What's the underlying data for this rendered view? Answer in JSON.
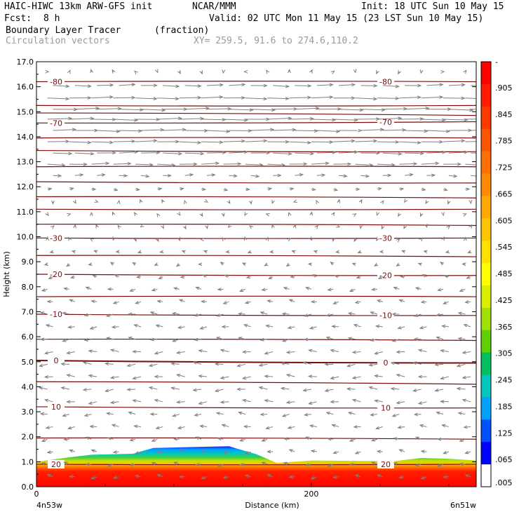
{
  "header": {
    "model": "HAIC-HIWC 13km ARW-GFS init",
    "org": "NCAR/MMM",
    "init": "Init: 18 UTC Sun 10 May 15",
    "fcst_label": "Fcst:",
    "fcst_value": "8 h",
    "valid": "Valid: 02 UTC Mon 11 May 15 (23 LST Sun 10 May 15)",
    "field": "Boundary Layer Tracer",
    "field_units": "(fraction)",
    "overlay": "Circulation vectors",
    "xy": "XY= 259.5, 91.6 to 274.6,110.2"
  },
  "colors": {
    "contour": "#7a0c0c",
    "vector": "#7f7f7f",
    "frame": "#000000"
  },
  "chart_data": {
    "type": "heatmap",
    "title": "Boundary Layer Tracer",
    "ylabel": "Height (km)",
    "xlabel": "Distance (km)",
    "ylim": [
      0,
      17
    ],
    "xlim": [
      0,
      320
    ],
    "y_ticks": [
      "0.0",
      "1.0",
      "2.0",
      "3.0",
      "4.0",
      "5.0",
      "6.0",
      "7.0",
      "8.0",
      "9.0",
      "10.0",
      "11.0",
      "12.0",
      "13.0",
      "14.0",
      "15.0",
      "16.0",
      "17.0"
    ],
    "x_ticks": [
      {
        "label": "0",
        "value": 0
      },
      {
        "label": "200",
        "value": 200
      }
    ],
    "x_endpoints": {
      "left": "4n53w",
      "right": "6n51w"
    },
    "colorbar": {
      "labels": [
        "-",
        ".905",
        ".845",
        ".785",
        ".725",
        ".665",
        ".605",
        ".545",
        ".485",
        ".425",
        ".365",
        ".305",
        ".245",
        ".185",
        ".125",
        ".065",
        ".005"
      ],
      "colors": [
        "#ff0000",
        "#ff1c00",
        "#ff3800",
        "#ff5400",
        "#ff7000",
        "#ff8c00",
        "#ffa800",
        "#ffc400",
        "#ffe000",
        "#ffff00",
        "#d8f000",
        "#a0e000",
        "#60d000",
        "#00c060",
        "#00c8c0",
        "#00a0ff",
        "#0050ff",
        "#0000ff",
        "#ffffff"
      ]
    },
    "tracer_top_profile": [
      {
        "x": 0,
        "h": 1.0
      },
      {
        "x": 20,
        "h": 1.15
      },
      {
        "x": 40,
        "h": 1.28
      },
      {
        "x": 70,
        "h": 1.32
      },
      {
        "x": 85,
        "h": 1.55
      },
      {
        "x": 140,
        "h": 1.62
      },
      {
        "x": 160,
        "h": 1.3
      },
      {
        "x": 175,
        "h": 0.95
      },
      {
        "x": 200,
        "h": 1.05
      },
      {
        "x": 260,
        "h": 1.02
      },
      {
        "x": 280,
        "h": 1.15
      },
      {
        "x": 300,
        "h": 1.12
      },
      {
        "x": 320,
        "h": 1.05
      }
    ],
    "temperature_contours": [
      {
        "label": "-80",
        "heights": [
          16.2,
          16.2
        ]
      },
      {
        "label": "",
        "heights": [
          15.25,
          15.25
        ]
      },
      {
        "label": "",
        "heights": [
          14.95,
          14.85
        ]
      },
      {
        "label": "-70",
        "heights": [
          14.55,
          14.6
        ]
      },
      {
        "label": "",
        "heights": [
          13.95,
          13.95
        ]
      },
      {
        "label": "",
        "heights": [
          13.45,
          13.4
        ]
      },
      {
        "label": "",
        "heights": [
          12.8,
          12.8
        ]
      },
      {
        "label": "",
        "heights": [
          12.2,
          12.15
        ]
      },
      {
        "label": "",
        "heights": [
          11.6,
          11.55
        ]
      },
      {
        "label": "",
        "heights": [
          11.1,
          11.1
        ]
      },
      {
        "label": "",
        "heights": [
          10.5,
          10.45
        ]
      },
      {
        "label": "-30",
        "heights": [
          9.95,
          9.95
        ]
      },
      {
        "label": "",
        "heights": [
          9.25,
          9.2
        ]
      },
      {
        "label": "-20",
        "heights": [
          8.5,
          8.45
        ]
      },
      {
        "label": "",
        "heights": [
          7.6,
          7.6
        ]
      },
      {
        "label": "-10",
        "heights": [
          6.9,
          6.85
        ]
      },
      {
        "label": "",
        "heights": [
          5.9,
          5.85
        ]
      },
      {
        "label": "0",
        "heights": [
          5.05,
          4.95
        ]
      },
      {
        "label": "",
        "heights": [
          4.2,
          4.1
        ]
      },
      {
        "label": "10",
        "heights": [
          3.2,
          3.15
        ]
      },
      {
        "label": "",
        "heights": [
          1.95,
          1.9
        ]
      },
      {
        "label": "20",
        "heights": [
          0.9,
          0.9
        ]
      }
    ],
    "vector_rows": [
      {
        "y": 16.6,
        "u": 0
      },
      {
        "y": 16.05,
        "u": 12
      },
      {
        "y": 15.55,
        "u": 16
      },
      {
        "y": 15.1,
        "u": 18
      },
      {
        "y": 14.7,
        "u": 18
      },
      {
        "y": 14.25,
        "u": 17
      },
      {
        "y": 13.8,
        "u": 16
      },
      {
        "y": 13.35,
        "u": 14
      },
      {
        "y": 12.9,
        "u": 13
      },
      {
        "y": 12.45,
        "u": 6
      },
      {
        "y": 11.9,
        "u": 3
      },
      {
        "y": 11.4,
        "u": 0
      },
      {
        "y": 10.9,
        "u": 0
      },
      {
        "y": 10.4,
        "u": 0
      },
      {
        "y": 9.9,
        "u": 0
      },
      {
        "y": 9.4,
        "u": -2
      },
      {
        "y": 8.9,
        "u": -2
      },
      {
        "y": 8.4,
        "u": -3
      },
      {
        "y": 7.9,
        "u": -4
      },
      {
        "y": 7.4,
        "u": -4
      },
      {
        "y": 6.9,
        "u": -5
      },
      {
        "y": 6.4,
        "u": -5
      },
      {
        "y": 5.9,
        "u": -5
      },
      {
        "y": 5.4,
        "u": -6
      },
      {
        "y": 4.9,
        "u": -6
      },
      {
        "y": 4.4,
        "u": -6
      },
      {
        "y": 3.9,
        "u": -6
      },
      {
        "y": 3.4,
        "u": -6
      },
      {
        "y": 2.9,
        "u": -5
      },
      {
        "y": 2.4,
        "u": -5
      },
      {
        "y": 1.9,
        "u": -4
      },
      {
        "y": 1.4,
        "u": -4
      },
      {
        "y": 0.9,
        "u": -4
      },
      {
        "y": 0.4,
        "u": -4
      }
    ]
  }
}
